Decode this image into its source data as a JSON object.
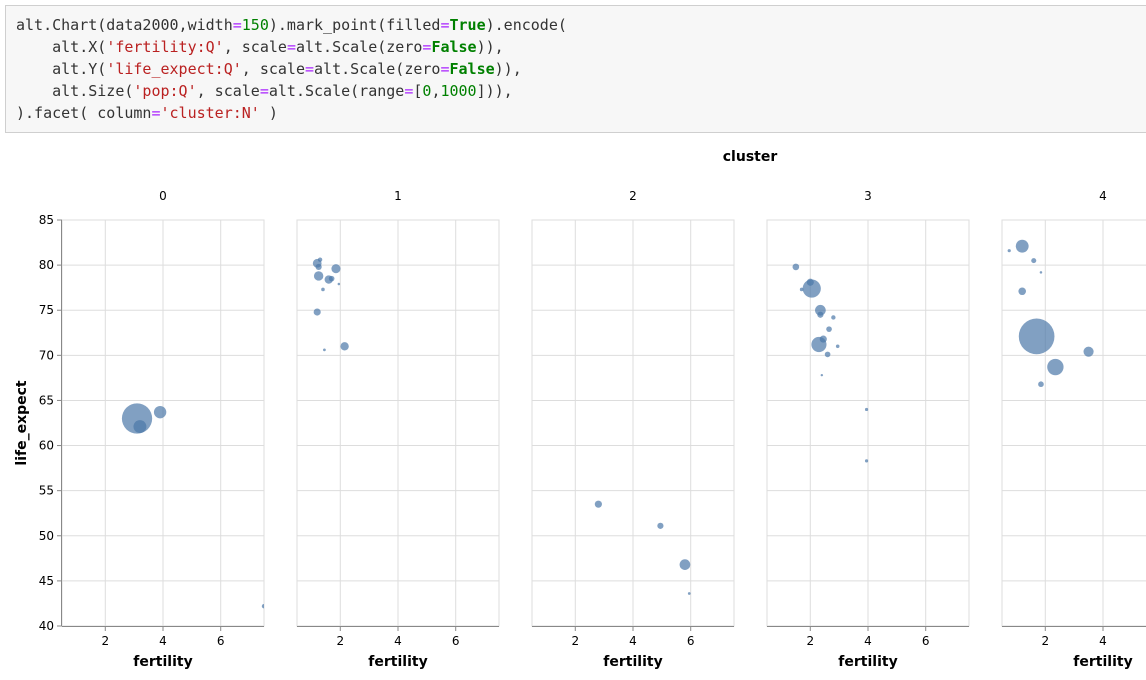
{
  "code": {
    "lines": [
      [
        [
          "plain",
          "alt.Chart(data2000,width"
        ],
        [
          "op",
          "="
        ],
        [
          "num",
          "150"
        ],
        [
          "plain",
          ").mark_point(filled"
        ],
        [
          "op",
          "="
        ],
        [
          "kw",
          "True"
        ],
        [
          "plain",
          ").encode("
        ]
      ],
      [
        [
          "plain",
          "    alt.X("
        ],
        [
          "str",
          "'fertility:Q'"
        ],
        [
          "plain",
          ", scale"
        ],
        [
          "op",
          "="
        ],
        [
          "plain",
          "alt.Scale(zero"
        ],
        [
          "op",
          "="
        ],
        [
          "kw",
          "False"
        ],
        [
          "plain",
          ")),"
        ]
      ],
      [
        [
          "plain",
          "    alt.Y("
        ],
        [
          "str",
          "'life_expect:Q'"
        ],
        [
          "plain",
          ", scale"
        ],
        [
          "op",
          "="
        ],
        [
          "plain",
          "alt.Scale(zero"
        ],
        [
          "op",
          "="
        ],
        [
          "kw",
          "False"
        ],
        [
          "plain",
          ")),"
        ]
      ],
      [
        [
          "plain",
          "    alt.Size("
        ],
        [
          "str",
          "'pop:Q'"
        ],
        [
          "plain",
          ", scale"
        ],
        [
          "op",
          "="
        ],
        [
          "plain",
          "alt.Scale(range"
        ],
        [
          "op",
          "="
        ],
        [
          "plain",
          "["
        ],
        [
          "num",
          "0"
        ],
        [
          "plain",
          ","
        ],
        [
          "num",
          "1000"
        ],
        [
          "plain",
          "])),"
        ]
      ],
      [
        [
          "plain",
          ").facet( column"
        ],
        [
          "op",
          "="
        ],
        [
          "str",
          "'cluster:N'"
        ],
        [
          "plain",
          " )"
        ]
      ]
    ]
  },
  "chart_data": {
    "type": "scatter",
    "facet_title": "cluster",
    "xlabel": "fertility",
    "ylabel": "life_expect",
    "xlim": [
      0.5,
      7.5
    ],
    "ylim": [
      40,
      85
    ],
    "x_ticks": [
      2,
      4,
      6
    ],
    "x_tick_labels": [
      "2",
      "4",
      "6"
    ],
    "y_ticks": [
      40,
      45,
      50,
      55,
      60,
      65,
      70,
      75,
      80,
      85
    ],
    "y_tick_labels": [
      "40",
      "45",
      "50",
      "55",
      "60",
      "65",
      "70",
      "75",
      "80",
      "85"
    ],
    "grid": true,
    "color": "#4c78a8",
    "facets": [
      {
        "label": "0",
        "points": [
          {
            "x": 3.1,
            "y": 63.0,
            "size": 720
          },
          {
            "x": 3.9,
            "y": 63.7,
            "size": 120
          },
          {
            "x": 3.2,
            "y": 62.1,
            "size": 130
          },
          {
            "x": 7.5,
            "y": 42.2,
            "size": 15
          }
        ]
      },
      {
        "label": "1",
        "points": [
          {
            "x": 1.2,
            "y": 80.2,
            "size": 60
          },
          {
            "x": 1.25,
            "y": 79.8,
            "size": 30
          },
          {
            "x": 1.3,
            "y": 80.6,
            "size": 15
          },
          {
            "x": 1.85,
            "y": 79.6,
            "size": 65
          },
          {
            "x": 1.25,
            "y": 78.8,
            "size": 70
          },
          {
            "x": 1.6,
            "y": 78.4,
            "size": 55
          },
          {
            "x": 1.7,
            "y": 78.5,
            "size": 25
          },
          {
            "x": 1.95,
            "y": 77.9,
            "size": 5
          },
          {
            "x": 1.4,
            "y": 77.3,
            "size": 10
          },
          {
            "x": 1.2,
            "y": 74.8,
            "size": 40
          },
          {
            "x": 2.15,
            "y": 71.0,
            "size": 55
          },
          {
            "x": 1.45,
            "y": 70.6,
            "size": 6
          }
        ]
      },
      {
        "label": "2",
        "points": [
          {
            "x": 2.8,
            "y": 53.5,
            "size": 40
          },
          {
            "x": 4.95,
            "y": 51.1,
            "size": 30
          },
          {
            "x": 5.8,
            "y": 46.8,
            "size": 90
          },
          {
            "x": 5.95,
            "y": 43.6,
            "size": 6
          }
        ]
      },
      {
        "label": "3",
        "points": [
          {
            "x": 1.5,
            "y": 79.8,
            "size": 35
          },
          {
            "x": 2.0,
            "y": 78.1,
            "size": 40
          },
          {
            "x": 2.05,
            "y": 77.4,
            "size": 260
          },
          {
            "x": 1.7,
            "y": 77.3,
            "size": 10
          },
          {
            "x": 2.35,
            "y": 75.0,
            "size": 90
          },
          {
            "x": 2.35,
            "y": 74.5,
            "size": 30
          },
          {
            "x": 2.8,
            "y": 74.2,
            "size": 15
          },
          {
            "x": 2.65,
            "y": 72.9,
            "size": 25
          },
          {
            "x": 2.45,
            "y": 71.8,
            "size": 40
          },
          {
            "x": 2.3,
            "y": 71.2,
            "size": 180
          },
          {
            "x": 2.95,
            "y": 71.0,
            "size": 10
          },
          {
            "x": 2.6,
            "y": 70.1,
            "size": 25
          },
          {
            "x": 2.4,
            "y": 67.8,
            "size": 3
          },
          {
            "x": 3.95,
            "y": 64.0,
            "size": 8
          },
          {
            "x": 3.95,
            "y": 58.3,
            "size": 8
          }
        ]
      },
      {
        "label": "4",
        "points": [
          {
            "x": 0.75,
            "y": 81.6,
            "size": 8
          },
          {
            "x": 1.2,
            "y": 82.1,
            "size": 130
          },
          {
            "x": 1.6,
            "y": 80.5,
            "size": 20
          },
          {
            "x": 1.85,
            "y": 79.2,
            "size": 5
          },
          {
            "x": 1.2,
            "y": 77.1,
            "size": 45
          },
          {
            "x": 1.7,
            "y": 72.1,
            "size": 1000
          },
          {
            "x": 2.35,
            "y": 68.7,
            "size": 210
          },
          {
            "x": 3.5,
            "y": 70.4,
            "size": 80
          },
          {
            "x": 1.85,
            "y": 66.8,
            "size": 25
          }
        ]
      }
    ]
  }
}
